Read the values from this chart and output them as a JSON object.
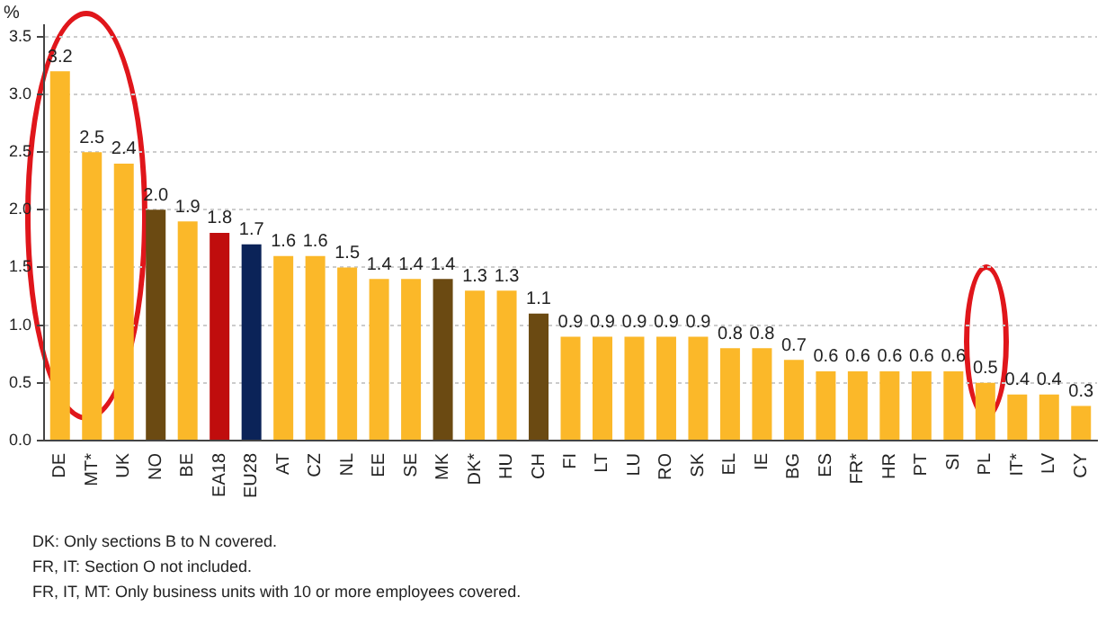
{
  "chart_data": {
    "type": "bar",
    "ylabel": "%",
    "categories": [
      "DE",
      "MT*",
      "UK",
      "NO",
      "BE",
      "EA18",
      "EU28",
      "AT",
      "CZ",
      "NL",
      "EE",
      "SE",
      "MK",
      "DK*",
      "HU",
      "CH",
      "FI",
      "LT",
      "LU",
      "RO",
      "SK",
      "EL",
      "IE",
      "BG",
      "ES",
      "FR*",
      "HR",
      "PT",
      "SI",
      "PL",
      "IT*",
      "LV",
      "CY"
    ],
    "values": [
      3.2,
      2.5,
      2.4,
      2.0,
      1.9,
      1.8,
      1.7,
      1.6,
      1.6,
      1.5,
      1.4,
      1.4,
      1.4,
      1.3,
      1.3,
      1.1,
      0.9,
      0.9,
      0.9,
      0.9,
      0.9,
      0.8,
      0.8,
      0.7,
      0.6,
      0.6,
      0.6,
      0.6,
      0.6,
      0.5,
      0.4,
      0.4,
      0.3
    ],
    "value_labels": [
      "3.2",
      "2.5",
      "2.4",
      "2.0",
      "1.9",
      "1.8",
      "1.7",
      "1.6",
      "1.6",
      "1.5",
      "1.4",
      "1.4",
      "1.4",
      "1.3",
      "1.3",
      "1.1",
      "0.9",
      "0.9",
      "0.9",
      "0.9",
      "0.9",
      "0.8",
      "0.8",
      "0.7",
      "0.6",
      "0.6",
      "0.6",
      "0.6",
      "0.6",
      "0.5",
      "0.4",
      "0.4",
      "0.3"
    ],
    "colors": [
      "#fbb829",
      "#fbb829",
      "#fbb829",
      "#6b4a12",
      "#fbb829",
      "#c00d0d",
      "#0b2358",
      "#fbb829",
      "#fbb829",
      "#fbb829",
      "#fbb829",
      "#fbb829",
      "#6b4a12",
      "#fbb829",
      "#fbb829",
      "#6b4a12",
      "#fbb829",
      "#fbb829",
      "#fbb829",
      "#fbb829",
      "#fbb829",
      "#fbb829",
      "#fbb829",
      "#fbb829",
      "#fbb829",
      "#fbb829",
      "#fbb829",
      "#fbb829",
      "#fbb829",
      "#fbb829",
      "#fbb829",
      "#fbb829",
      "#fbb829"
    ],
    "ylim": [
      0,
      3.6
    ],
    "yticks": [
      {
        "value": 0,
        "label": "0.0"
      },
      {
        "value": 0.5,
        "label": "0.5"
      },
      {
        "value": 1,
        "label": "1.0"
      },
      {
        "value": 1.5,
        "label": "1.5"
      },
      {
        "value": 2,
        "label": "2.0"
      },
      {
        "value": 2.5,
        "label": "2.5"
      },
      {
        "value": 3,
        "label": "3.0"
      },
      {
        "value": 3.5,
        "label": "3.5"
      }
    ],
    "grid": "y",
    "legend": false,
    "annotations": [
      "DK: Only sections B to N covered.",
      "FR, IT: Section O not included.",
      "FR, IT, MT: Only business units with 10 or more employees covered."
    ]
  }
}
